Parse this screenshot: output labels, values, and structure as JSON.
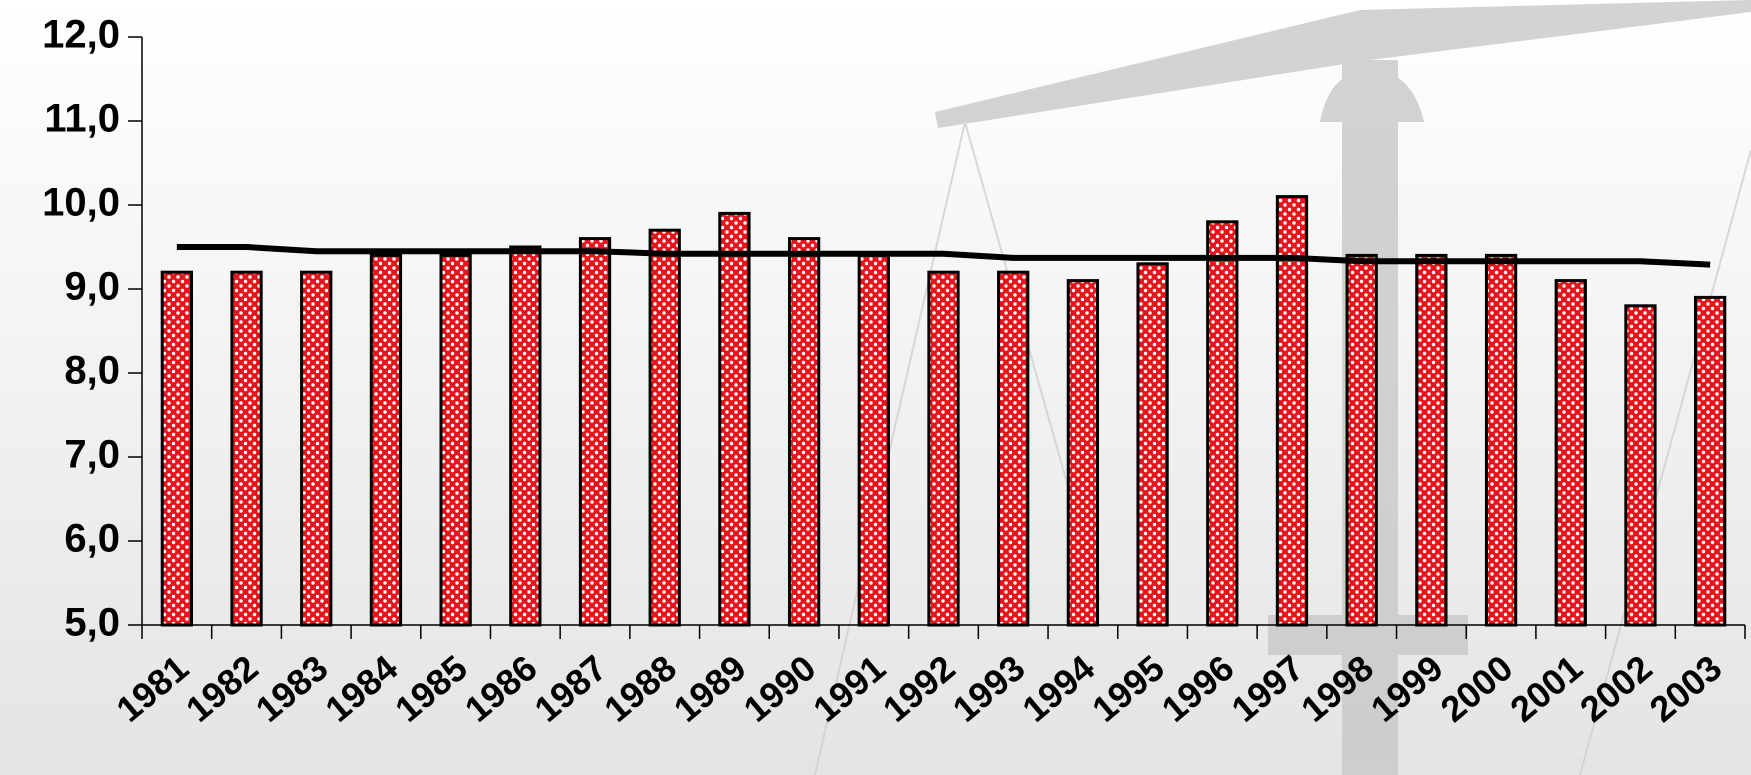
{
  "chart_data": {
    "type": "bar",
    "categories": [
      "1981",
      "1982",
      "1983",
      "1984",
      "1985",
      "1986",
      "1987",
      "1988",
      "1989",
      "1990",
      "1991",
      "1992",
      "1993",
      "1994",
      "1995",
      "1996",
      "1997",
      "1998",
      "1999",
      "2000",
      "2001",
      "2002",
      "2003"
    ],
    "series": [
      {
        "type": "bar",
        "color": "#e8141c",
        "values": [
          9.2,
          9.2,
          9.2,
          9.4,
          9.4,
          9.5,
          9.6,
          9.7,
          9.9,
          9.6,
          9.4,
          9.2,
          9.2,
          9.1,
          9.3,
          9.8,
          10.1,
          9.4,
          9.4,
          9.4,
          9.1,
          8.8,
          8.9
        ]
      },
      {
        "type": "line",
        "color": "#000000",
        "values": [
          9.5,
          9.5,
          9.45,
          9.45,
          9.45,
          9.45,
          9.45,
          9.42,
          9.42,
          9.42,
          9.42,
          9.42,
          9.37,
          9.37,
          9.37,
          9.37,
          9.37,
          9.33,
          9.33,
          9.33,
          9.33,
          9.33,
          9.29
        ]
      }
    ],
    "ylim": [
      5,
      12
    ],
    "yticks": [
      {
        "value": 5,
        "label": "5,0"
      },
      {
        "value": 6,
        "label": "6,0"
      },
      {
        "value": 7,
        "label": "7,0"
      },
      {
        "value": 8,
        "label": "8,0"
      },
      {
        "value": 9,
        "label": "9,0"
      },
      {
        "value": 10,
        "label": "10,0"
      },
      {
        "value": 11,
        "label": "11,0"
      },
      {
        "value": 12,
        "label": "12,0"
      }
    ],
    "grid": false
  }
}
